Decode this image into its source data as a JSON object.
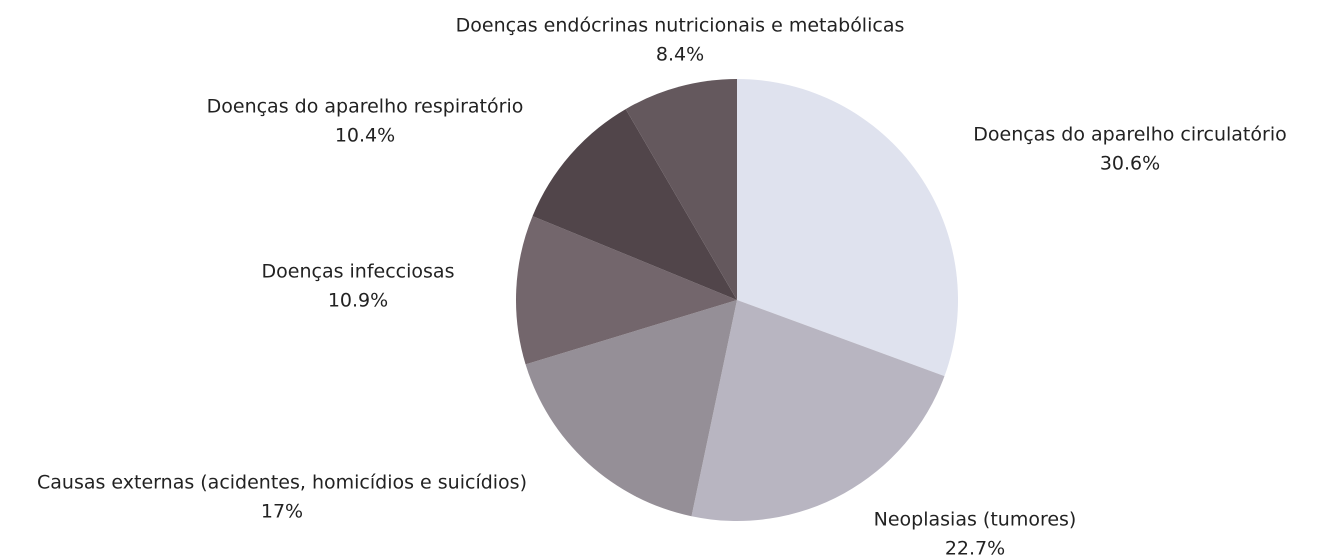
{
  "chart_data": {
    "type": "pie",
    "categories": [
      "Doenças do aparelho circulatório",
      "Neoplasias (tumores)",
      "Causas externas (acidentes, homicídios e suicídios)",
      "Doenças infecciosas",
      "Doenças do aparelho respiratório",
      "Doenças endócrinas nutricionais e metabólicas"
    ],
    "values": [
      30.6,
      22.7,
      17,
      10.9,
      10.4,
      8.4
    ],
    "value_labels": [
      "30.6%",
      "22.7%",
      "17%",
      "10.9%",
      "10.4%",
      "8.4%"
    ],
    "colors": [
      "#dfe2ee",
      "#b8b5c1",
      "#958f97",
      "#73666c",
      "#51454a",
      "#64585d"
    ]
  }
}
